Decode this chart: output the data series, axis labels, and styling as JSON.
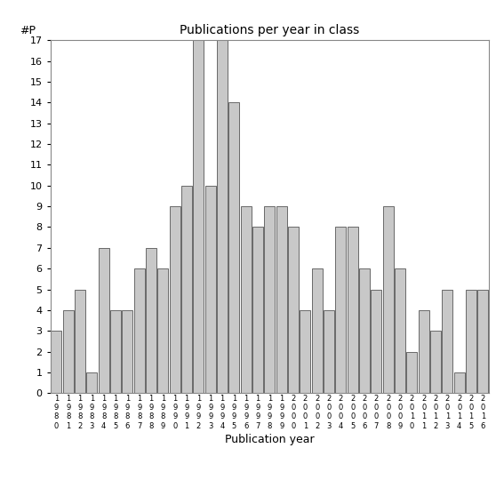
{
  "title": "Publications per year in class",
  "xlabel": "Publication year",
  "ylabel": "#P",
  "bar_color": "#c8c8c8",
  "bar_edge_color": "#555555",
  "years": [
    "1980",
    "1981",
    "1982",
    "1983",
    "1984",
    "1985",
    "1986",
    "1987",
    "1988",
    "1989",
    "1990",
    "1991",
    "1992",
    "1993",
    "1994",
    "1995",
    "1996",
    "1997",
    "1998",
    "1999",
    "2000",
    "2001",
    "2002",
    "2003",
    "2004",
    "2005",
    "2006",
    "2007",
    "2008",
    "2009",
    "2010",
    "2011",
    "2012",
    "2013",
    "2014",
    "2015",
    "2016"
  ],
  "values": [
    3,
    4,
    5,
    1,
    7,
    4,
    4,
    6,
    7,
    6,
    9,
    10,
    17,
    10,
    17,
    14,
    9,
    8,
    9,
    9,
    8,
    4,
    6,
    4,
    8,
    8,
    6,
    5,
    9,
    6,
    2,
    4,
    3,
    5,
    1,
    5,
    5
  ],
  "ylim": [
    0,
    17
  ],
  "yticks": [
    0,
    1,
    2,
    3,
    4,
    5,
    6,
    7,
    8,
    9,
    10,
    11,
    12,
    13,
    14,
    15,
    16,
    17
  ],
  "bg_color": "#ffffff",
  "figsize": [
    5.67,
    5.67
  ],
  "dpi": 100
}
